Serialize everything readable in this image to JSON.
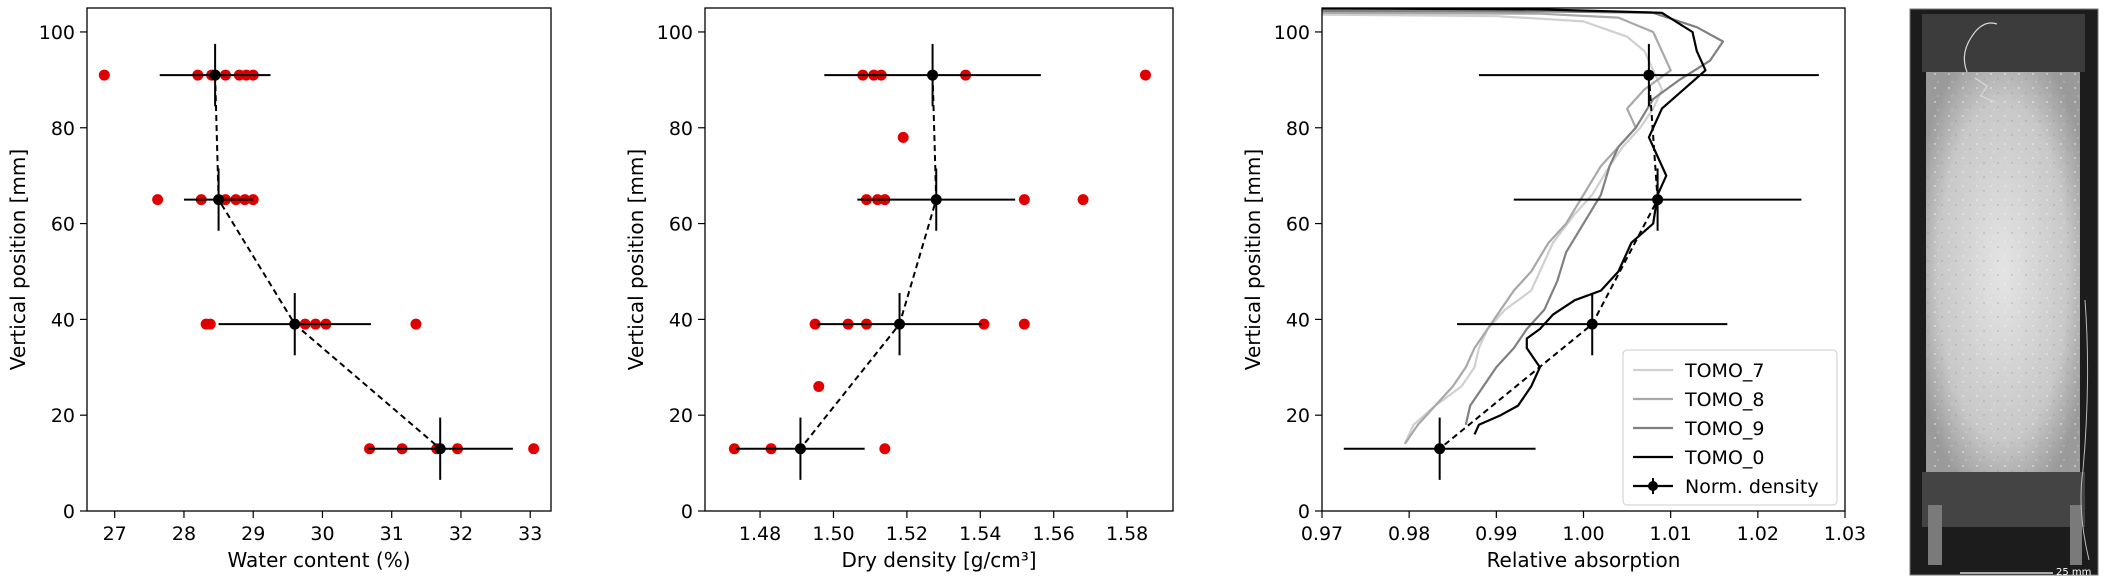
{
  "chart_data": [
    {
      "type": "scatter",
      "xlabel": "Water content (%)",
      "ylabel": "Vertical position [mm]",
      "xlim": [
        26.6,
        33.3
      ],
      "ylim": [
        0,
        105
      ],
      "xticks": [
        27,
        28,
        29,
        30,
        31,
        32,
        33
      ],
      "yticks": [
        0,
        20,
        40,
        60,
        80,
        100
      ],
      "grid": false,
      "samples": {
        "color": "#e00000",
        "points": [
          [
            26.85,
            91
          ],
          [
            28.2,
            91
          ],
          [
            28.4,
            91
          ],
          [
            28.6,
            91
          ],
          [
            28.8,
            91
          ],
          [
            28.9,
            91
          ],
          [
            29.0,
            91
          ],
          [
            27.62,
            65
          ],
          [
            28.25,
            65
          ],
          [
            28.6,
            65
          ],
          [
            28.75,
            65
          ],
          [
            28.88,
            65
          ],
          [
            29.0,
            65
          ],
          [
            28.32,
            39
          ],
          [
            28.38,
            39
          ],
          [
            29.75,
            39
          ],
          [
            29.9,
            39
          ],
          [
            30.05,
            39
          ],
          [
            31.35,
            39
          ],
          [
            30.68,
            13
          ],
          [
            31.15,
            13
          ],
          [
            31.65,
            13
          ],
          [
            31.95,
            13
          ],
          [
            33.05,
            13
          ]
        ]
      },
      "mean": {
        "color": "#000000",
        "points": [
          {
            "x": 28.45,
            "y": 91,
            "xerr": 0.8,
            "yerr": 6.5
          },
          {
            "x": 28.5,
            "y": 65,
            "xerr": 0.5,
            "yerr": 6.5
          },
          {
            "x": 29.6,
            "y": 39,
            "xerr": 1.1,
            "yerr": 6.5
          },
          {
            "x": 31.7,
            "y": 13,
            "xerr": 1.05,
            "yerr": 6.5
          }
        ]
      }
    },
    {
      "type": "scatter",
      "xlabel": "Dry density [g/cm³]",
      "ylabel": "Vertical position [mm]",
      "xlim": [
        1.465,
        1.5925
      ],
      "ylim": [
        0,
        105
      ],
      "xticks": [
        1.48,
        1.5,
        1.52,
        1.54,
        1.56,
        1.58
      ],
      "xtick_labels": [
        "1.48",
        "1.50",
        "1.52",
        "1.54",
        "1.56",
        "1.58"
      ],
      "yticks": [
        0,
        20,
        40,
        60,
        80,
        100
      ],
      "grid": false,
      "samples": {
        "color": "#e00000",
        "points": [
          [
            1.508,
            91
          ],
          [
            1.511,
            91
          ],
          [
            1.513,
            91
          ],
          [
            1.536,
            91
          ],
          [
            1.585,
            91
          ],
          [
            1.519,
            78
          ],
          [
            1.509,
            65
          ],
          [
            1.512,
            65
          ],
          [
            1.514,
            65
          ],
          [
            1.552,
            65
          ],
          [
            1.568,
            65
          ],
          [
            1.495,
            39
          ],
          [
            1.504,
            39
          ],
          [
            1.509,
            39
          ],
          [
            1.541,
            39
          ],
          [
            1.552,
            39
          ],
          [
            1.496,
            26
          ],
          [
            1.473,
            13
          ],
          [
            1.483,
            13
          ],
          [
            1.514,
            13
          ]
        ]
      },
      "mean": {
        "color": "#000000",
        "points": [
          {
            "x": 1.527,
            "y": 91,
            "xerr": 0.0295,
            "yerr": 6.5
          },
          {
            "x": 1.528,
            "y": 65,
            "xerr": 0.0215,
            "yerr": 6.5
          },
          {
            "x": 1.518,
            "y": 39,
            "xerr": 0.0225,
            "yerr": 6.5
          },
          {
            "x": 1.491,
            "y": 13,
            "xerr": 0.0175,
            "yerr": 6.5
          }
        ]
      }
    },
    {
      "type": "line",
      "xlabel": "Relative absorption",
      "ylabel": "Vertical position [mm]",
      "xlim": [
        0.97,
        1.03
      ],
      "ylim": [
        0,
        105
      ],
      "xticks": [
        0.97,
        0.98,
        0.99,
        1.0,
        1.01,
        1.02,
        1.03
      ],
      "xtick_labels": [
        "0.97",
        "0.98",
        "0.99",
        "1.00",
        "1.01",
        "1.02",
        "1.03"
      ],
      "yticks": [
        0,
        20,
        40,
        60,
        80,
        100
      ],
      "grid": false,
      "legend": "bottom-right",
      "series": [
        {
          "name": "TOMO_7",
          "color": "#d0d0d0",
          "points": [
            [
              0.97,
              103.6
            ],
            [
              0.99,
              103.3
            ],
            [
              1.0,
              102.2
            ],
            [
              1.005,
              99
            ],
            [
              1.007,
              96
            ],
            [
              1.008,
              92
            ],
            [
              1.009,
              88
            ],
            [
              1.008,
              84
            ],
            [
              1.0065,
              80
            ],
            [
              1.0045,
              76
            ],
            [
              1.003,
              72
            ],
            [
              1.001,
              66
            ],
            [
              0.999,
              62
            ],
            [
              0.9965,
              56
            ],
            [
              0.995,
              50
            ],
            [
              0.994,
              46
            ],
            [
              0.991,
              42
            ],
            [
              0.989,
              38
            ],
            [
              0.988,
              34
            ],
            [
              0.9875,
              30
            ],
            [
              0.986,
              26
            ],
            [
              0.983,
              22
            ],
            [
              0.9805,
              18
            ],
            [
              0.9795,
              14
            ]
          ]
        },
        {
          "name": "TOMO_8",
          "color": "#a8a8a8",
          "points": [
            [
              0.97,
              104.0
            ],
            [
              0.995,
              103.8
            ],
            [
              1.004,
              103
            ],
            [
              1.008,
              100
            ],
            [
              1.009,
              96
            ],
            [
              1.01,
              92
            ],
            [
              1.007,
              88
            ],
            [
              1.005,
              84
            ],
            [
              1.006,
              80
            ],
            [
              1.004,
              76
            ],
            [
              1.002,
              72
            ],
            [
              1.0,
              66
            ],
            [
              0.998,
              60
            ],
            [
              0.996,
              56
            ],
            [
              0.994,
              50
            ],
            [
              0.992,
              46
            ],
            [
              0.9905,
              42
            ],
            [
              0.989,
              38
            ],
            [
              0.9875,
              34
            ],
            [
              0.9865,
              30
            ],
            [
              0.985,
              26
            ],
            [
              0.983,
              22
            ],
            [
              0.981,
              18
            ],
            [
              0.9795,
              14
            ]
          ]
        },
        {
          "name": "TOMO_9",
          "color": "#808080",
          "points": [
            [
              0.97,
              104.4
            ],
            [
              0.995,
              104.3
            ],
            [
              1.008,
              104
            ],
            [
              1.013,
              101
            ],
            [
              1.016,
              98
            ],
            [
              1.0145,
              94
            ],
            [
              1.011,
              90
            ],
            [
              1.008,
              86
            ],
            [
              1.006,
              80
            ],
            [
              1.004,
              76
            ],
            [
              1.003,
              72
            ],
            [
              1.002,
              66
            ],
            [
              1.0,
              60
            ],
            [
              0.998,
              54
            ],
            [
              0.997,
              48
            ],
            [
              0.9955,
              42
            ],
            [
              0.9935,
              38
            ],
            [
              0.992,
              34
            ],
            [
              0.99,
              30
            ],
            [
              0.9885,
              26
            ],
            [
              0.987,
              22
            ],
            [
              0.9865,
              18
            ]
          ]
        },
        {
          "name": "TOMO_0",
          "color": "#000000",
          "points": [
            [
              0.97,
              104.9
            ],
            [
              0.995,
              104.7
            ],
            [
              1.009,
              104
            ],
            [
              1.0125,
              100
            ],
            [
              1.013,
              96
            ],
            [
              1.014,
              92
            ],
            [
              1.0115,
              88
            ],
            [
              1.009,
              84
            ],
            [
              1.0075,
              78
            ],
            [
              1.0085,
              74
            ],
            [
              1.0095,
              70
            ],
            [
              1.0085,
              66
            ],
            [
              1.008,
              60
            ],
            [
              1.0055,
              56
            ],
            [
              1.004,
              50
            ],
            [
              1.002,
              46
            ],
            [
              0.999,
              44
            ],
            [
              0.9965,
              41
            ],
            [
              0.995,
              38
            ],
            [
              0.9935,
              36
            ],
            [
              0.9935,
              34
            ],
            [
              0.995,
              30
            ],
            [
              0.994,
              26
            ],
            [
              0.9925,
              22
            ],
            [
              0.9905,
              20
            ],
            [
              0.988,
              18
            ],
            [
              0.9875,
              16
            ]
          ]
        }
      ],
      "mean": {
        "name": "Norm. density",
        "color": "#000000",
        "points": [
          {
            "x": 1.0075,
            "y": 91,
            "xerr": 0.0195,
            "yerr": 6.5
          },
          {
            "x": 1.0085,
            "y": 65,
            "xerr": 0.0165,
            "yerr": 6.5
          },
          {
            "x": 1.001,
            "y": 39,
            "xerr": 0.0155,
            "yerr": 6.5
          },
          {
            "x": 0.9835,
            "y": 13,
            "xerr": 0.011,
            "yerr": 6.5
          }
        ]
      }
    }
  ],
  "image_panel": {
    "scale_bar_label": "25 mm"
  }
}
